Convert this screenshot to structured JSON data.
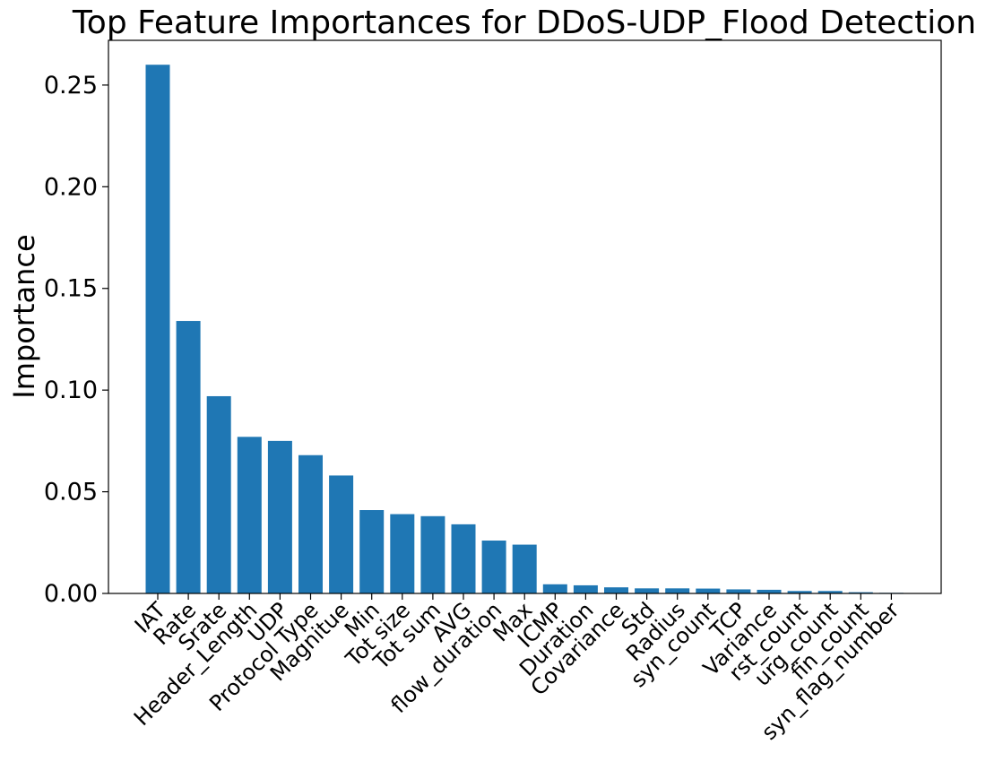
{
  "chart_data": {
    "type": "bar",
    "title": "Top Feature Importances for DDoS-UDP_Flood Detection",
    "xlabel": "",
    "ylabel": "Importance",
    "ylim": [
      0,
      0.272
    ],
    "yticks": [
      0.0,
      0.05,
      0.1,
      0.15,
      0.2,
      0.25
    ],
    "ytick_labels": [
      "0.00",
      "0.05",
      "0.10",
      "0.15",
      "0.20",
      "0.25"
    ],
    "categories": [
      "IAT",
      "Rate",
      "Srate",
      "Header_Length",
      "UDP",
      "Protocol Type",
      "Magnitue",
      "Min",
      "Tot size",
      "Tot sum",
      "AVG",
      "flow_duration",
      "Max",
      "ICMP",
      "Duration",
      "Covariance",
      "Std",
      "Radius",
      "syn_count",
      "TCP",
      "Variance",
      "rst_count",
      "urg_count",
      "fin_count",
      "syn_flag_number"
    ],
    "values": [
      0.26,
      0.134,
      0.097,
      0.077,
      0.075,
      0.068,
      0.058,
      0.041,
      0.039,
      0.038,
      0.034,
      0.026,
      0.024,
      0.0045,
      0.004,
      0.003,
      0.0025,
      0.0025,
      0.0024,
      0.002,
      0.0018,
      0.0012,
      0.0012,
      0.0006,
      0.0003
    ],
    "bar_color": "#1f77b4",
    "grid": false
  }
}
